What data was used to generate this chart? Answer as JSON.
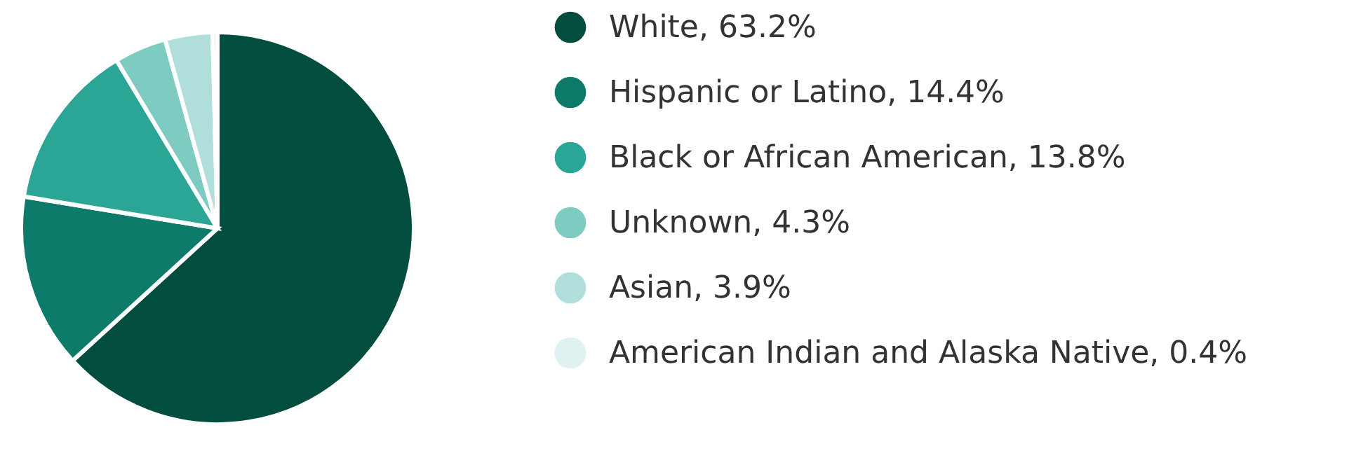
{
  "chart_data": {
    "type": "pie",
    "categories": [
      "White",
      "Hispanic or Latino",
      "Black or African American",
      "Unknown",
      "Asian",
      "American Indian and Alaska Native"
    ],
    "values": [
      63.2,
      14.4,
      13.8,
      4.3,
      3.9,
      0.4
    ],
    "value_labels": [
      "63.2%",
      "14.4%",
      "13.8%",
      "4.3%",
      "3.9%",
      "0.4%"
    ],
    "colors": [
      "#034d3f",
      "#0d7a6a",
      "#2aa596",
      "#7ecbc1",
      "#b0deda",
      "#dff1f0"
    ],
    "legend": "right"
  }
}
